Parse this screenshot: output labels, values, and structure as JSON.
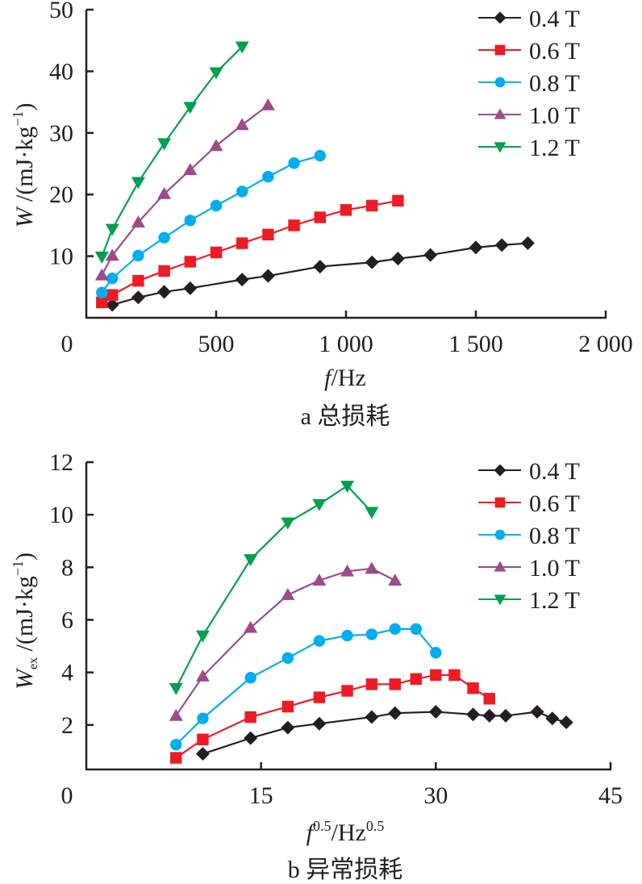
{
  "chart_data": [
    {
      "id": "a",
      "type": "line",
      "caption": "a 总损耗",
      "xlabel_var": "f",
      "xlabel_unit": "/Hz",
      "ylabel_var": "W",
      "ylabel_unit": " /(mJ·kg",
      "ylabel_sup": "−1",
      "ylabel_close": ")",
      "xlim": [
        0,
        2000
      ],
      "ylim": [
        0,
        50
      ],
      "xticks": [
        0,
        500,
        1000,
        1500,
        2000
      ],
      "xtick_labels": [
        "0",
        "500",
        "1 000",
        "1 500",
        "2 000"
      ],
      "yticks": [
        10,
        20,
        30,
        40,
        50
      ],
      "ytick_labels": [
        "10",
        "20",
        "30",
        "40",
        "50"
      ],
      "grid": false,
      "legend_position": "top-right",
      "series": [
        {
          "name": "0.4 T",
          "color": "#231f20",
          "marker": "diamond",
          "x": [
            100,
            200,
            300,
            400,
            600,
            700,
            900,
            1100,
            1200,
            1325,
            1500,
            1600,
            1700
          ],
          "y": [
            2.1,
            3.3,
            4.2,
            4.8,
            6.2,
            6.8,
            8.3,
            9.0,
            9.6,
            10.2,
            11.4,
            11.8,
            12.1
          ]
        },
        {
          "name": "0.6 T",
          "color": "#ed1c24",
          "marker": "square",
          "x": [
            60,
            100,
            200,
            300,
            400,
            500,
            600,
            700,
            800,
            900,
            1000,
            1100,
            1200
          ],
          "y": [
            2.5,
            3.7,
            6.0,
            7.6,
            9.1,
            10.6,
            12.1,
            13.5,
            15.0,
            16.3,
            17.5,
            18.2,
            19.0
          ]
        },
        {
          "name": "0.8 T",
          "color": "#00aeef",
          "marker": "circle",
          "x": [
            60,
            100,
            200,
            300,
            400,
            500,
            600,
            700,
            800,
            900
          ],
          "y": [
            4.1,
            6.4,
            10.1,
            13.0,
            15.8,
            18.2,
            20.5,
            22.9,
            25.1,
            26.3
          ]
        },
        {
          "name": "1.0 T",
          "color": "#9e4a8b",
          "marker": "triangle-up",
          "x": [
            60,
            100,
            200,
            300,
            400,
            500,
            600,
            700
          ],
          "y": [
            6.9,
            10.1,
            15.5,
            20.1,
            24.0,
            27.9,
            31.3,
            34.5
          ]
        },
        {
          "name": "1.2 T",
          "color": "#00a04f",
          "marker": "triangle-down",
          "x": [
            60,
            100,
            200,
            300,
            400,
            500,
            600
          ],
          "y": [
            9.9,
            14.4,
            22.0,
            28.3,
            34.2,
            39.8,
            44.0
          ]
        }
      ]
    },
    {
      "id": "b",
      "type": "line",
      "caption": "b 异常损耗",
      "xlabel_var": "f",
      "xlabel_sup": "0.5",
      "xlabel_unit": "/Hz",
      "xlabel_unit_sup": "0.5",
      "ylabel_var": "W",
      "ylabel_sub": "ex",
      "ylabel_unit": " /(mJ·kg",
      "ylabel_sup": "−1",
      "ylabel_close": ")",
      "xlim": [
        0,
        45
      ],
      "ylim": [
        0,
        12
      ],
      "xticks": [
        0,
        15,
        30,
        45
      ],
      "xtick_labels": [
        "0",
        "15",
        "30",
        "45"
      ],
      "yticks": [
        2,
        4,
        6,
        8,
        10,
        12
      ],
      "ytick_labels": [
        "2",
        "4",
        "6",
        "8",
        "10",
        "12"
      ],
      "grid": false,
      "legend_position": "top-right",
      "series": [
        {
          "name": "0.4 T",
          "color": "#231f20",
          "marker": "diamond",
          "x": [
            10.0,
            14.1,
            17.3,
            20.0,
            24.5,
            26.5,
            30.0,
            33.2,
            34.6,
            36.0,
            38.7,
            40.0,
            41.2
          ],
          "y": [
            0.9,
            1.5,
            1.9,
            2.05,
            2.3,
            2.45,
            2.5,
            2.4,
            2.35,
            2.35,
            2.5,
            2.25,
            2.1
          ]
        },
        {
          "name": "0.6 T",
          "color": "#ed1c24",
          "marker": "square",
          "x": [
            7.7,
            10.0,
            14.1,
            17.3,
            20.0,
            22.4,
            24.5,
            26.5,
            28.3,
            30.0,
            31.6,
            33.2,
            34.6
          ],
          "y": [
            0.75,
            1.45,
            2.3,
            2.7,
            3.05,
            3.3,
            3.55,
            3.55,
            3.75,
            3.9,
            3.9,
            3.4,
            3.0
          ]
        },
        {
          "name": "0.8 T",
          "color": "#00aeef",
          "marker": "circle",
          "x": [
            7.7,
            10.0,
            14.1,
            17.3,
            20.0,
            22.4,
            24.5,
            26.5,
            28.3,
            30.0
          ],
          "y": [
            1.25,
            2.25,
            3.8,
            4.55,
            5.2,
            5.4,
            5.45,
            5.65,
            5.65,
            4.75
          ]
        },
        {
          "name": "1.0 T",
          "color": "#9e4a8b",
          "marker": "triangle-up",
          "x": [
            7.7,
            10.0,
            14.1,
            17.3,
            20.0,
            22.4,
            24.5,
            26.5
          ],
          "y": [
            2.35,
            3.85,
            5.7,
            6.95,
            7.5,
            7.85,
            7.95,
            7.5
          ]
        },
        {
          "name": "1.2 T",
          "color": "#00a04f",
          "marker": "triangle-down",
          "x": [
            7.7,
            10.0,
            14.1,
            17.3,
            20.0,
            22.4,
            24.5
          ],
          "y": [
            3.4,
            5.4,
            8.3,
            9.7,
            10.4,
            11.1,
            10.1
          ]
        }
      ]
    }
  ]
}
